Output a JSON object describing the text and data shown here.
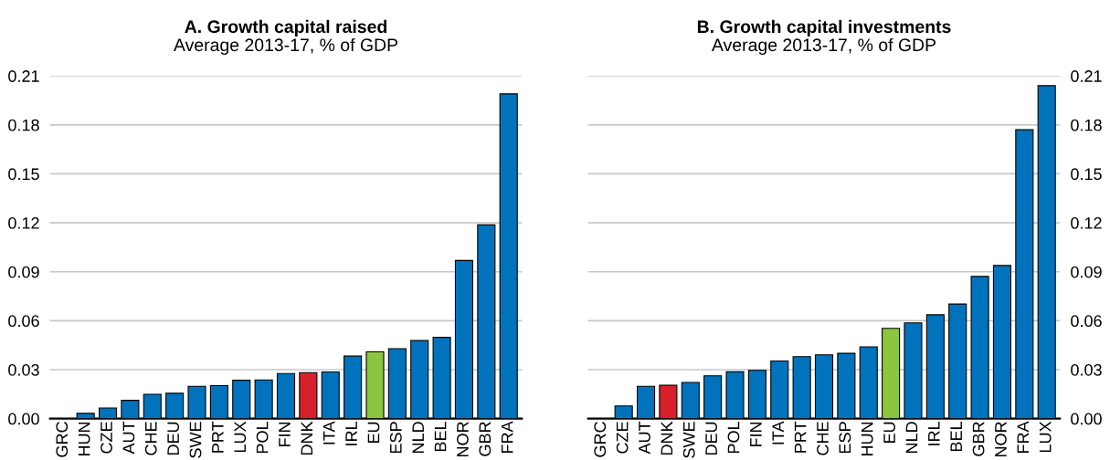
{
  "chart_data": [
    {
      "type": "bar",
      "title": "A. Growth capital raised",
      "subtitle": "Average 2013-17, % of GDP",
      "categories": [
        "GRC",
        "HUN",
        "CZE",
        "AUT",
        "CHE",
        "DEU",
        "SWE",
        "PRT",
        "LUX",
        "POL",
        "FIN",
        "DNK",
        "ITA",
        "IRL",
        "EU",
        "ESP",
        "NLD",
        "BEL",
        "NOR",
        "GBR",
        "FRA"
      ],
      "values": [
        null,
        0.0032,
        0.0065,
        0.0112,
        0.0149,
        0.0155,
        0.0198,
        0.0202,
        0.0235,
        0.0237,
        0.0276,
        0.0282,
        0.0286,
        0.0383,
        0.0409,
        0.0429,
        0.0478,
        0.0498,
        0.0969,
        0.1187,
        0.199
      ],
      "colors": [
        "#0173bd",
        "#0173bd",
        "#0173bd",
        "#0173bd",
        "#0173bd",
        "#0173bd",
        "#0173bd",
        "#0173bd",
        "#0173bd",
        "#0173bd",
        "#0173bd",
        "#d7202a",
        "#0173bd",
        "#0173bd",
        "#8cc63f",
        "#0173bd",
        "#0173bd",
        "#0173bd",
        "#0173bd",
        "#0173bd",
        "#0173bd"
      ],
      "ylim": [
        0,
        0.21
      ],
      "yticks": [
        {
          "value": 0,
          "label": "0.00"
        },
        0.03,
        0.06,
        0.09,
        0.12,
        0.15,
        0.18,
        0.21
      ],
      "grid": "y"
    },
    {
      "type": "bar",
      "title": "B. Growth capital investments",
      "subtitle": "Average 2013-17, % of GDP",
      "categories": [
        "GRC",
        "CZE",
        "AUT",
        "DNK",
        "SWE",
        "DEU",
        "POL",
        "FIN",
        "ITA",
        "PRT",
        "CHE",
        "ESP",
        "HUN",
        "EU",
        "NLD",
        "IRL",
        "BEL",
        "GBR",
        "NOR",
        "FRA",
        "LUX"
      ],
      "values": [
        null,
        0.0078,
        0.0198,
        0.0204,
        0.0222,
        0.0262,
        0.0287,
        0.0296,
        0.0353,
        0.038,
        0.0391,
        0.04,
        0.044,
        0.0553,
        0.0587,
        0.0636,
        0.0702,
        0.0871,
        0.0938,
        0.177,
        0.204
      ],
      "colors": [
        "#0173bd",
        "#0173bd",
        "#0173bd",
        "#d7202a",
        "#0173bd",
        "#0173bd",
        "#0173bd",
        "#0173bd",
        "#0173bd",
        "#0173bd",
        "#0173bd",
        "#0173bd",
        "#0173bd",
        "#8cc63f",
        "#0173bd",
        "#0173bd",
        "#0173bd",
        "#0173bd",
        "#0173bd",
        "#0173bd",
        "#0173bd"
      ],
      "ylim": [
        0,
        0.21
      ],
      "yticks": [
        {
          "value": 0,
          "label": "0.00"
        },
        0.03,
        0.06,
        0.09,
        0.12,
        0.15,
        0.18,
        0.21
      ],
      "grid": "y"
    }
  ]
}
